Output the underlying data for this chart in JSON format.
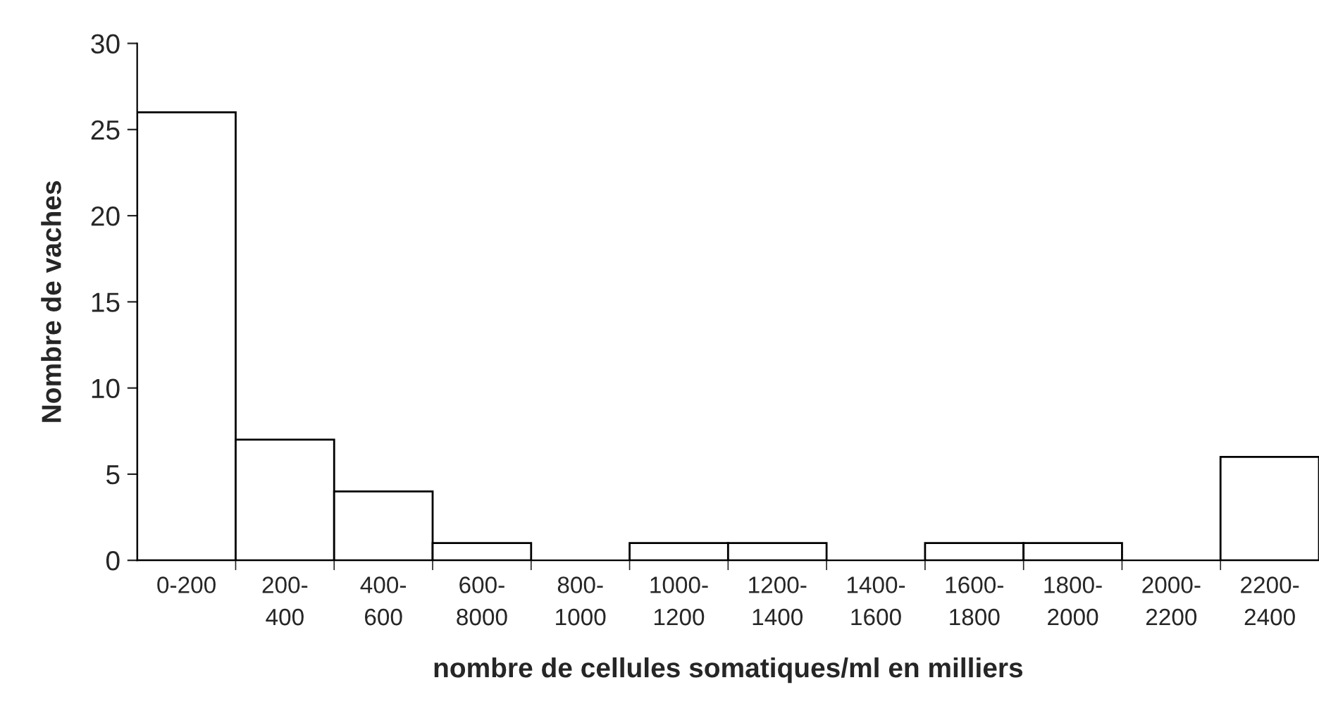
{
  "chart_data": {
    "type": "bar",
    "xlabel": "nombre de cellules somatiques/ml en milliers",
    "ylabel": "Nombre de vaches",
    "categories": [
      "0-200",
      "200-\n400",
      "400-\n600",
      "600-\n8000",
      "800-\n1000",
      "1000-\n1200",
      "1200-\n1400",
      "1400-\n1600",
      "1600-\n1800",
      "1800-\n2000",
      "2000-\n2200",
      "2200-\n2400"
    ],
    "values": [
      26,
      7,
      4,
      1,
      0,
      1,
      1,
      0,
      1,
      1,
      0,
      6
    ],
    "color": "#ffffff",
    "ylim": [
      0,
      30
    ],
    "yticks": [
      0,
      5,
      10,
      15,
      20,
      25,
      30
    ],
    "grid": false,
    "legend": false
  }
}
